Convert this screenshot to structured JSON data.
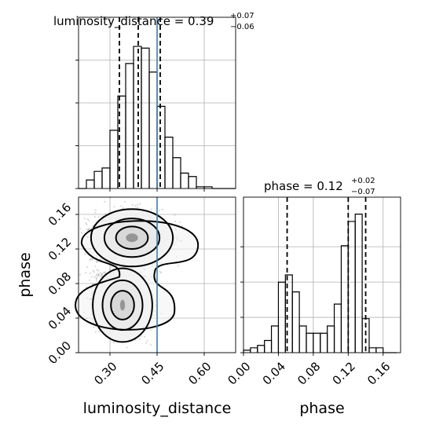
{
  "chart_data": [
    {
      "type": "histogram",
      "panel": "luminosity_distance-1d",
      "title": {
        "main": "luminosity_distance = 0.39",
        "sup": "+0.07",
        "sub": "−0.06"
      },
      "xlim": [
        0.2,
        0.7
      ],
      "xticks": [
        0.3,
        0.45,
        0.6
      ],
      "bins": [
        0.2,
        0.225,
        0.25,
        0.275,
        0.3,
        0.325,
        0.35,
        0.375,
        0.4,
        0.425,
        0.45,
        0.475,
        0.5,
        0.525,
        0.55,
        0.575,
        0.6,
        0.625,
        0.65,
        0.675,
        0.7
      ],
      "counts": [
        0,
        5,
        10,
        12,
        34,
        54,
        73,
        83,
        82,
        68,
        48,
        30,
        18,
        9,
        7,
        1,
        1,
        0,
        0,
        0
      ],
      "quantiles": [
        0.33,
        0.39,
        0.46
      ],
      "truth": 0.45
    },
    {
      "type": "histogram",
      "panel": "phase-1d",
      "title": {
        "main": "phase = 0.12",
        "sup": "+0.02",
        "sub": "−0.07"
      },
      "xlim": [
        0.0,
        0.18
      ],
      "xticks": [
        0.0,
        0.04,
        0.08,
        0.12,
        0.16
      ],
      "bins": [
        0.0,
        0.008,
        0.016,
        0.024,
        0.032,
        0.04,
        0.048,
        0.056,
        0.064,
        0.072,
        0.08,
        0.088,
        0.096,
        0.104,
        0.112,
        0.12,
        0.128,
        0.136,
        0.144,
        0.152,
        0.16,
        0.168,
        0.176
      ],
      "counts": [
        1,
        2,
        3,
        5,
        11,
        29,
        32,
        25,
        11,
        8,
        8,
        8,
        11,
        20,
        44,
        54,
        57,
        14,
        2,
        2,
        0,
        0
      ],
      "quantiles": [
        0.05,
        0.12,
        0.14
      ]
    },
    {
      "type": "scatter",
      "panel": "luminosity_distance-vs-phase",
      "xlabel": "luminosity_distance",
      "ylabel": "phase",
      "xlim": [
        0.2,
        0.7
      ],
      "ylim": [
        0.0,
        0.18
      ],
      "xticks": [
        0.3,
        0.45,
        0.6
      ],
      "yticks": [
        0.0,
        0.04,
        0.08,
        0.12,
        0.16
      ],
      "modes": [
        {
          "center": [
            0.37,
            0.133
          ],
          "spread": [
            0.055,
            0.014
          ],
          "weight": 0.6
        },
        {
          "center": [
            0.34,
            0.055
          ],
          "spread": [
            0.04,
            0.018
          ],
          "weight": 0.4
        }
      ],
      "truth_x": 0.45
    }
  ]
}
